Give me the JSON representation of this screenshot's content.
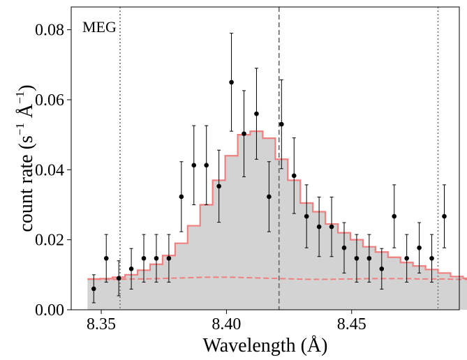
{
  "chart_data": {
    "type": "step-with-errorbars",
    "panel_label": "MEG",
    "xlabel": "Wavelength (Å)",
    "ylabel_main": "count rate (s",
    "ylabel_sup1": "−1",
    "ylabel_mid": " Å",
    "ylabel_sup2": "−1",
    "ylabel_end": ")",
    "xlim": [
      8.338,
      8.493
    ],
    "ylim": [
      0,
      0.0865
    ],
    "xticks": [
      8.35,
      8.4,
      8.45
    ],
    "xtick_labels": [
      "8.35",
      "8.40",
      "8.45"
    ],
    "yticks": [
      0,
      0.02,
      0.04,
      0.06,
      0.08
    ],
    "ytick_labels": [
      "0.00",
      "0.02",
      "0.04",
      "0.06",
      "0.08"
    ],
    "vertical_lines": [
      {
        "x": 8.3575,
        "style": "dotted",
        "color": "#808080"
      },
      {
        "x": 8.421,
        "style": "dashed",
        "color": "#707070"
      },
      {
        "x": 8.4845,
        "style": "dotted",
        "color": "#808080"
      }
    ],
    "bin_width": 0.005,
    "bin_start": 8.3445,
    "model_total": [
      0.0088,
      0.0089,
      0.0093,
      0.01,
      0.0113,
      0.013,
      0.0155,
      0.019,
      0.024,
      0.03,
      0.037,
      0.044,
      0.05,
      0.051,
      0.049,
      0.043,
      0.037,
      0.0305,
      0.028,
      0.0245,
      0.022,
      0.02,
      0.018,
      0.0165,
      0.015,
      0.0135,
      0.0125,
      0.0115,
      0.0105,
      0.0095,
      0.009
    ],
    "model_continuum": [
      0.0087,
      0.0087,
      0.0087,
      0.0088,
      0.0088,
      0.0089,
      0.009,
      0.0091,
      0.0092,
      0.0093,
      0.0093,
      0.0093,
      0.0092,
      0.0091,
      0.009,
      0.0089,
      0.0088,
      0.0087,
      0.0087,
      0.0087,
      0.0088,
      0.0088,
      0.0089,
      0.0089,
      0.0089,
      0.0089,
      0.0088,
      0.0088,
      0.0088,
      0.0087,
      0.0087
    ],
    "data_points": [
      {
        "x": 8.347,
        "y": 0.006,
        "err": 0.004
      },
      {
        "x": 8.352,
        "y": 0.0147,
        "err": 0.0068
      },
      {
        "x": 8.357,
        "y": 0.009,
        "err": 0.005
      },
      {
        "x": 8.362,
        "y": 0.0117,
        "err": 0.0058
      },
      {
        "x": 8.367,
        "y": 0.0147,
        "err": 0.0068
      },
      {
        "x": 8.372,
        "y": 0.0147,
        "err": 0.0068
      },
      {
        "x": 8.377,
        "y": 0.0147,
        "err": 0.0068
      },
      {
        "x": 8.382,
        "y": 0.0323,
        "err": 0.01
      },
      {
        "x": 8.387,
        "y": 0.0413,
        "err": 0.0113
      },
      {
        "x": 8.392,
        "y": 0.0413,
        "err": 0.0113
      },
      {
        "x": 8.397,
        "y": 0.0353,
        "err": 0.0103
      },
      {
        "x": 8.402,
        "y": 0.065,
        "err": 0.014
      },
      {
        "x": 8.407,
        "y": 0.0503,
        "err": 0.0123
      },
      {
        "x": 8.412,
        "y": 0.056,
        "err": 0.013
      },
      {
        "x": 8.417,
        "y": 0.0323,
        "err": 0.01
      },
      {
        "x": 8.422,
        "y": 0.053,
        "err": 0.0127
      },
      {
        "x": 8.427,
        "y": 0.0383,
        "err": 0.0108
      },
      {
        "x": 8.432,
        "y": 0.0267,
        "err": 0.009
      },
      {
        "x": 8.437,
        "y": 0.0237,
        "err": 0.0085
      },
      {
        "x": 8.442,
        "y": 0.0237,
        "err": 0.0085
      },
      {
        "x": 8.447,
        "y": 0.0177,
        "err": 0.0072
      },
      {
        "x": 8.452,
        "y": 0.0147,
        "err": 0.0068
      },
      {
        "x": 8.457,
        "y": 0.0147,
        "err": 0.0068
      },
      {
        "x": 8.462,
        "y": 0.0117,
        "err": 0.0058
      },
      {
        "x": 8.467,
        "y": 0.0267,
        "err": 0.009
      },
      {
        "x": 8.472,
        "y": 0.0147,
        "err": 0.0068
      },
      {
        "x": 8.477,
        "y": 0.0177,
        "err": 0.0072
      },
      {
        "x": 8.482,
        "y": 0.0147,
        "err": 0.0068
      },
      {
        "x": 8.487,
        "y": 0.0267,
        "err": 0.009
      }
    ],
    "colors": {
      "fill": "#d3d3d3",
      "model_line": "#f08080",
      "points": "#000000"
    }
  }
}
